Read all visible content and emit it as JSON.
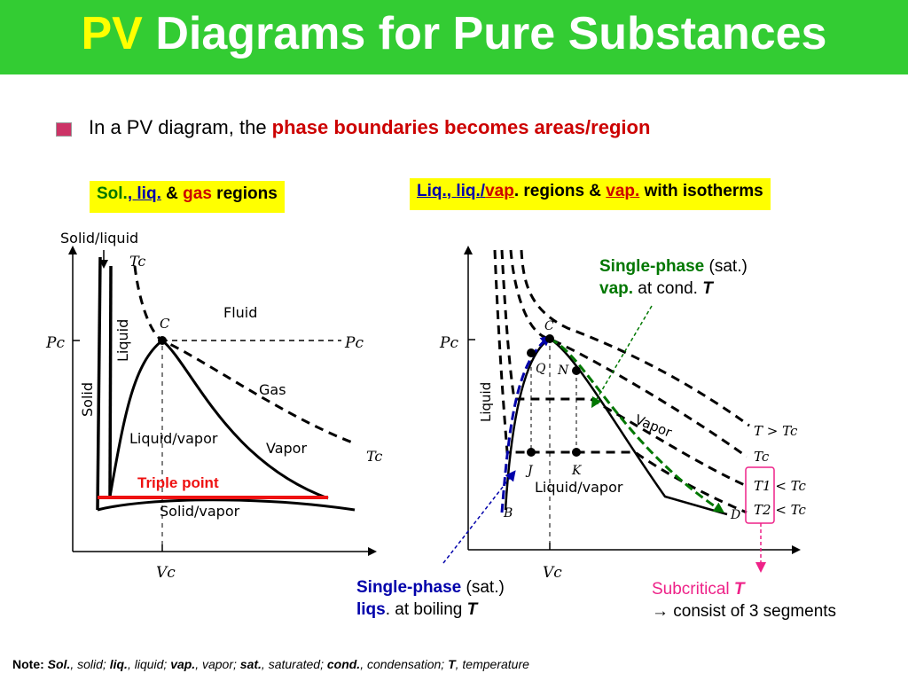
{
  "slide": {
    "title_part1": "PV",
    "title_part2": "Diagrams for Pure Substances",
    "bullet_prefix": "In a PV diagram, the ",
    "bullet_highlight": "phase boundaries becomes areas/region",
    "tag_left": {
      "sol": "Sol.",
      "comma": ", ",
      "liq": "liq.",
      "amp": " & ",
      "gas": "gas",
      "rest": " regions"
    },
    "tag_right": {
      "liq": "Liq.",
      "comma": ", ",
      "liq2": "liq.",
      "slash": "/",
      "vap": "vap",
      "mid": ". regions & ",
      "vap2": "vap.",
      "rest": " with isotherms"
    }
  },
  "left_diagram": {
    "solid_liquid": "Solid/liquid",
    "tc_top": "Tc",
    "pc_axis": "Pc",
    "pc_right": "Pc",
    "c_point": "C",
    "fluid": "Fluid",
    "liquid": "Liquid",
    "solid": "Solid",
    "gas": "Gas",
    "liquid_vapor": "Liquid/vapor",
    "vapor": "Vapor",
    "tc_right": "Tc",
    "triple_point": "Triple point",
    "solid_vapor": "Solid/vapor",
    "vc": "Vc"
  },
  "right_diagram": {
    "pc_axis": "Pc",
    "c_point": "C",
    "q_point": "Q",
    "n_point": "N",
    "liquid": "Liquid",
    "vapor": "Vapor",
    "j_point": "J",
    "k_point": "K",
    "liquid_vapor": "Liquid/vapor",
    "b_point": "B",
    "d_point": "D",
    "vc": "Vc",
    "t_gt_tc": "T > Tc",
    "tc": "Tc",
    "t1": "T1 < Tc",
    "t2": "T2 < Tc"
  },
  "annotations": {
    "vap_line1_bold": "Single-phase",
    "vap_line1_rest": " (sat.)",
    "vap_line2_bold": "vap.",
    "vap_line2_mid": " at cond. ",
    "vap_line2_t": "T",
    "liq_line1_bold": "Single-phase",
    "liq_line1_rest": " (sat.)",
    "liq_line2_bold": "liqs",
    "liq_line2_mid": ". at boiling ",
    "liq_line2_t": "T",
    "sub_line1": "Subcritical ",
    "sub_line1_t": "T",
    "sub_line2": "→ consist of 3 segments"
  },
  "note": {
    "label": "Note: ",
    "sol": "Sol.",
    "sol_d": ", solid; ",
    "liq": "liq.",
    "liq_d": ", liquid; ",
    "vap": "vap.",
    "vap_d": ", vapor;  ",
    "sat": "sat.",
    "sat_d": ", saturated; ",
    "cond": "cond.",
    "cond_d": ", condensation; ",
    "t": "T",
    "t_d": ", temperature"
  },
  "colors": {
    "title_bg": "#33cc33",
    "title_accent": "#ffff00",
    "tag_bg": "#ffff00",
    "red": "#cc0000",
    "blue": "#0000aa",
    "green": "#007700",
    "pink": "#ee2288"
  }
}
